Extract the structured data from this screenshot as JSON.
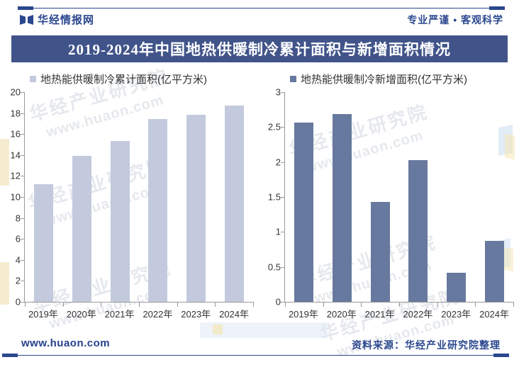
{
  "page": {
    "bg": "#FFFFFF",
    "accent": "#2B478E"
  },
  "header": {
    "brand": "华经情报网",
    "slogan": "专业严谨 • 客观科学",
    "logo_icon": "huajing-logo-icon"
  },
  "banner": {
    "title": "2019-2024年中国地热供暖制冷累计面积与新增面积情况",
    "bg": "#41548A",
    "text_color": "#FFFFFF"
  },
  "watermark": {
    "line1": "华经产业研究院",
    "line2": "www.huaon.com"
  },
  "chart_data": [
    {
      "type": "bar",
      "legend": "地热能供暖制冷累计面积(亿平方米)",
      "categories": [
        "2019年",
        "2020年",
        "2021年",
        "2022年",
        "2023年",
        "2024年"
      ],
      "values": [
        11.25,
        13.94,
        15.37,
        17.4,
        17.82,
        18.69
      ],
      "xlabel": "",
      "ylabel": "",
      "ylim": [
        0,
        20
      ],
      "ytick_step": 2,
      "bar_color": "#C3CADD",
      "grid": false,
      "legend_position": "top-left"
    },
    {
      "type": "bar",
      "legend": "地热能供暖制冷新增面积(亿平方米)",
      "categories": [
        "2019年",
        "2020年",
        "2021年",
        "2022年",
        "2023年",
        "2024年"
      ],
      "values": [
        2.56,
        2.69,
        1.43,
        2.03,
        0.42,
        0.87
      ],
      "xlabel": "",
      "ylabel": "",
      "ylim": [
        0,
        3
      ],
      "ytick_step": 0.5,
      "bar_color": "#68799F",
      "grid": false,
      "legend_position": "top-left"
    }
  ],
  "footer": {
    "site": "www.huaon.com",
    "source": "资料来源：华经产业研究院整理"
  }
}
